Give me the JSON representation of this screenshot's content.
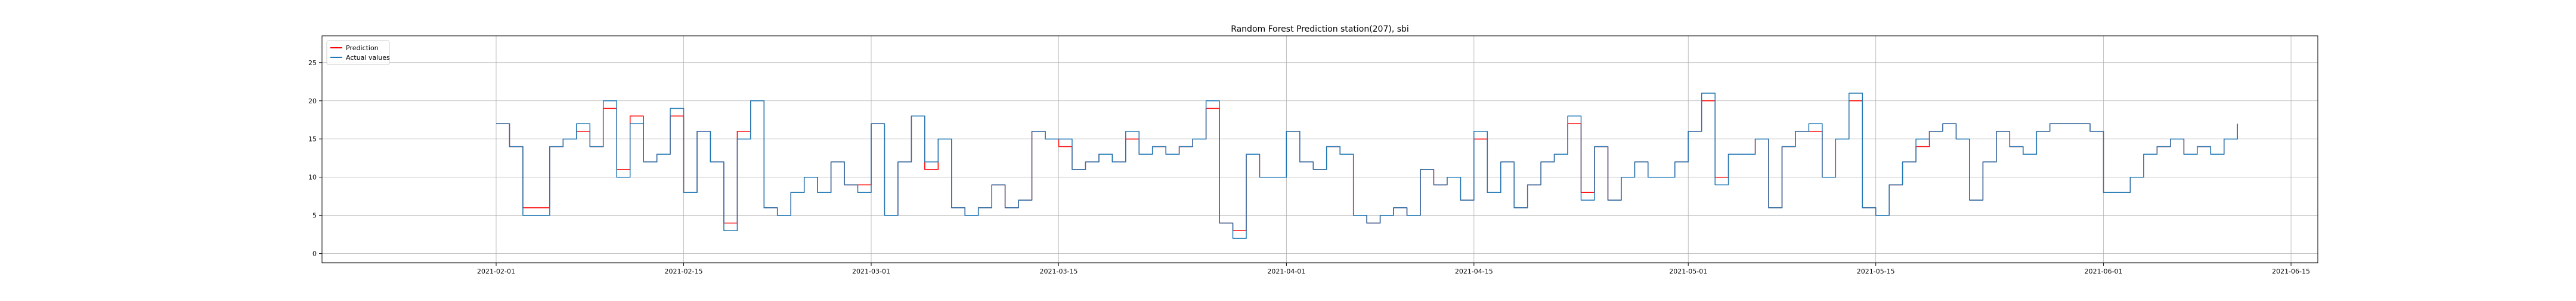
{
  "chart_data": {
    "type": "line",
    "title": "Random Forest Prediction  station(207), sbi",
    "xlabel": "",
    "ylabel": "",
    "grid": true,
    "legend_position": "top-left",
    "x_range": [
      "2021-01-19",
      "2021-06-17"
    ],
    "ylim": [
      -1.2,
      28.5
    ],
    "x_ticks": [
      "2021-02-01",
      "2021-02-15",
      "2021-03-01",
      "2021-03-15",
      "2021-04-01",
      "2021-04-15",
      "2021-05-01",
      "2021-05-15",
      "2021-06-01",
      "2021-06-15"
    ],
    "y_ticks": [
      0,
      5,
      10,
      15,
      20,
      25
    ],
    "x": [
      "2021-02-01",
      "2021-02-02",
      "2021-02-03",
      "2021-02-04",
      "2021-02-05",
      "2021-02-06",
      "2021-02-07",
      "2021-02-08",
      "2021-02-09",
      "2021-02-10",
      "2021-02-11",
      "2021-02-12",
      "2021-02-13",
      "2021-02-14",
      "2021-02-15",
      "2021-02-16",
      "2021-02-17",
      "2021-02-18",
      "2021-02-19",
      "2021-02-20",
      "2021-02-21",
      "2021-02-22",
      "2021-02-23",
      "2021-02-24",
      "2021-02-25",
      "2021-02-26",
      "2021-02-27",
      "2021-02-28",
      "2021-03-01",
      "2021-03-02",
      "2021-03-03",
      "2021-03-04",
      "2021-03-05",
      "2021-03-06",
      "2021-03-07",
      "2021-03-08",
      "2021-03-09",
      "2021-03-10",
      "2021-03-11",
      "2021-03-12",
      "2021-03-13",
      "2021-03-14",
      "2021-03-15",
      "2021-03-16",
      "2021-03-17",
      "2021-03-18",
      "2021-03-19",
      "2021-03-20",
      "2021-03-21",
      "2021-03-22",
      "2021-03-23",
      "2021-03-24",
      "2021-03-25",
      "2021-03-26",
      "2021-03-27",
      "2021-03-28",
      "2021-03-29",
      "2021-03-30",
      "2021-03-31",
      "2021-04-01",
      "2021-04-02",
      "2021-04-03",
      "2021-04-04",
      "2021-04-05",
      "2021-04-06",
      "2021-04-07",
      "2021-04-08",
      "2021-04-09",
      "2021-04-10",
      "2021-04-11",
      "2021-04-12",
      "2021-04-13",
      "2021-04-14",
      "2021-04-15",
      "2021-04-16",
      "2021-04-17",
      "2021-04-18",
      "2021-04-19",
      "2021-04-20",
      "2021-04-21",
      "2021-04-22",
      "2021-04-23",
      "2021-04-24",
      "2021-04-25",
      "2021-04-26",
      "2021-04-27",
      "2021-04-28",
      "2021-04-29",
      "2021-04-30",
      "2021-05-01",
      "2021-05-02",
      "2021-05-03",
      "2021-05-04",
      "2021-05-05",
      "2021-05-06",
      "2021-05-07",
      "2021-05-08",
      "2021-05-09",
      "2021-05-10",
      "2021-05-11",
      "2021-05-12",
      "2021-05-13",
      "2021-05-14",
      "2021-05-15",
      "2021-05-16",
      "2021-05-17",
      "2021-05-18",
      "2021-05-19",
      "2021-05-20",
      "2021-05-21",
      "2021-05-22",
      "2021-05-23",
      "2021-05-24",
      "2021-05-25",
      "2021-05-26",
      "2021-05-27",
      "2021-05-28",
      "2021-05-29",
      "2021-05-30",
      "2021-05-31",
      "2021-06-01",
      "2021-06-02",
      "2021-06-03",
      "2021-06-04",
      "2021-06-05",
      "2021-06-06",
      "2021-06-07",
      "2021-06-08",
      "2021-06-09",
      "2021-06-10",
      "2021-06-11"
    ],
    "series": [
      {
        "name": "Prediction",
        "color": "#ff0000",
        "values": [
          17,
          14,
          6,
          6,
          14,
          15,
          16,
          14,
          19,
          11,
          18,
          12,
          13,
          18,
          8,
          16,
          12,
          4,
          16,
          20,
          6,
          5,
          8,
          10,
          8,
          12,
          9,
          9,
          17,
          5,
          12,
          18,
          11,
          15,
          6,
          5,
          6,
          9,
          6,
          7,
          16,
          15,
          14,
          11,
          12,
          13,
          12,
          15,
          13,
          14,
          13,
          14,
          15,
          19,
          4,
          3,
          13,
          10,
          10,
          16,
          12,
          11,
          14,
          13,
          5,
          4,
          5,
          6,
          5,
          11,
          9,
          10,
          7,
          15,
          8,
          12,
          6,
          9,
          12,
          13,
          17,
          8,
          14,
          7,
          10,
          12,
          10,
          10,
          12,
          16,
          20,
          10,
          13,
          13,
          15,
          6,
          14,
          16,
          16,
          10,
          15,
          20,
          6,
          5,
          9,
          12,
          14,
          16,
          17,
          15,
          7,
          12,
          16,
          14,
          13,
          16,
          17,
          17,
          17,
          16,
          8,
          8,
          10,
          13,
          14,
          15,
          13,
          14,
          13,
          15,
          17
        ]
      },
      {
        "name": "Actual values",
        "color": "#1f77b4",
        "values": [
          17,
          14,
          5,
          5,
          14,
          15,
          17,
          14,
          20,
          10,
          17,
          12,
          13,
          19,
          8,
          16,
          12,
          3,
          15,
          20,
          6,
          5,
          8,
          10,
          8,
          12,
          9,
          8,
          17,
          5,
          12,
          18,
          12,
          15,
          6,
          5,
          6,
          9,
          6,
          7,
          16,
          15,
          15,
          11,
          12,
          13,
          12,
          16,
          13,
          14,
          13,
          14,
          15,
          20,
          4,
          2,
          13,
          10,
          10,
          16,
          12,
          11,
          14,
          13,
          5,
          4,
          5,
          6,
          5,
          11,
          9,
          10,
          7,
          16,
          8,
          12,
          6,
          9,
          12,
          13,
          18,
          7,
          14,
          7,
          10,
          12,
          10,
          10,
          12,
          16,
          21,
          9,
          13,
          13,
          15,
          6,
          14,
          16,
          17,
          10,
          15,
          21,
          6,
          5,
          9,
          12,
          15,
          16,
          17,
          15,
          7,
          12,
          16,
          14,
          13,
          16,
          17,
          17,
          17,
          16,
          8,
          8,
          10,
          13,
          14,
          15,
          13,
          14,
          13,
          15,
          17
        ]
      }
    ]
  }
}
